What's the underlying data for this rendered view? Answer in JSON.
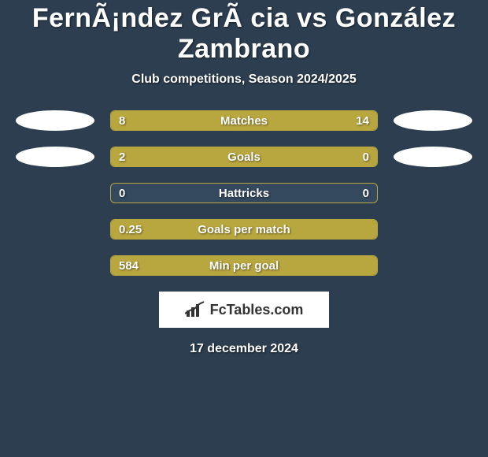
{
  "title": "FernÃ¡ndez GrÃ cia vs González Zambrano",
  "subtitle": "Club competitions, Season 2024/2025",
  "date": "17 december 2024",
  "colors": {
    "background": "#2c3e50",
    "bar_fill": "#b8a63f",
    "bar_border": "#b8a63f",
    "bar_empty": "#34495e",
    "text": "#ffffff",
    "avatar": "#ffffff",
    "logo_bg": "#ffffff",
    "logo_text": "#333333"
  },
  "logo": {
    "text": "FcTables.com"
  },
  "rows": [
    {
      "label": "Matches",
      "left": "8",
      "right": "14",
      "left_pct": 36,
      "right_pct": 64,
      "show_avatars": true
    },
    {
      "label": "Goals",
      "left": "2",
      "right": "0",
      "left_pct": 80,
      "right_pct": 20,
      "show_avatars": true
    },
    {
      "label": "Hattricks",
      "left": "0",
      "right": "0",
      "left_pct": 0,
      "right_pct": 0,
      "show_avatars": false
    },
    {
      "label": "Goals per match",
      "left": "0.25",
      "right": "",
      "left_pct": 100,
      "right_pct": 0,
      "show_avatars": false
    },
    {
      "label": "Min per goal",
      "left": "584",
      "right": "",
      "left_pct": 100,
      "right_pct": 0,
      "show_avatars": false
    }
  ]
}
